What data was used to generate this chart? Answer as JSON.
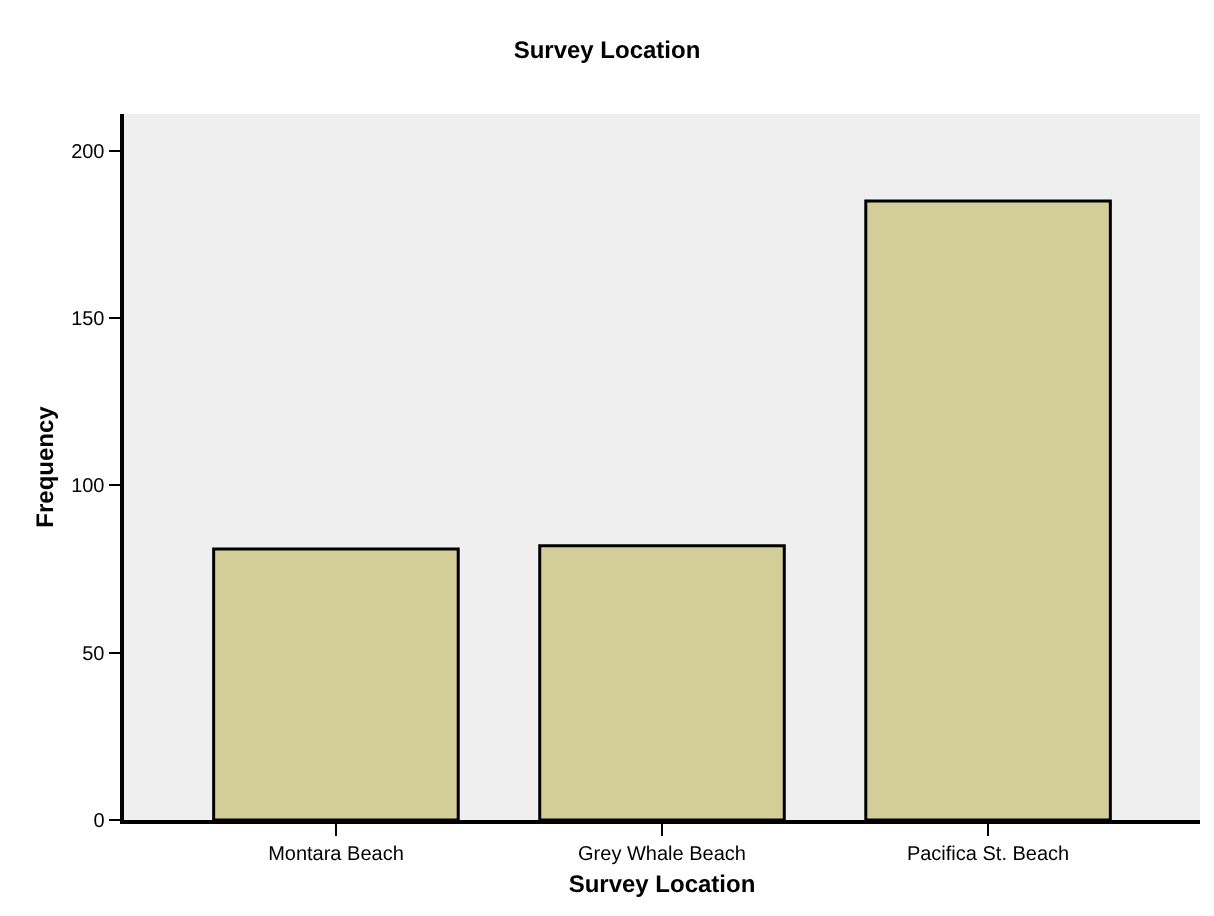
{
  "chart_data": {
    "type": "bar",
    "title": "Survey Location",
    "xlabel": "Survey Location",
    "ylabel": "Frequency",
    "categories": [
      "Montara Beach",
      "Grey Whale Beach",
      "Pacifica St. Beach"
    ],
    "values": [
      81,
      82,
      185
    ],
    "color": "#d3ce97",
    "ylim": [
      0,
      211
    ],
    "yticks": [
      0,
      50,
      100,
      150,
      200
    ]
  }
}
